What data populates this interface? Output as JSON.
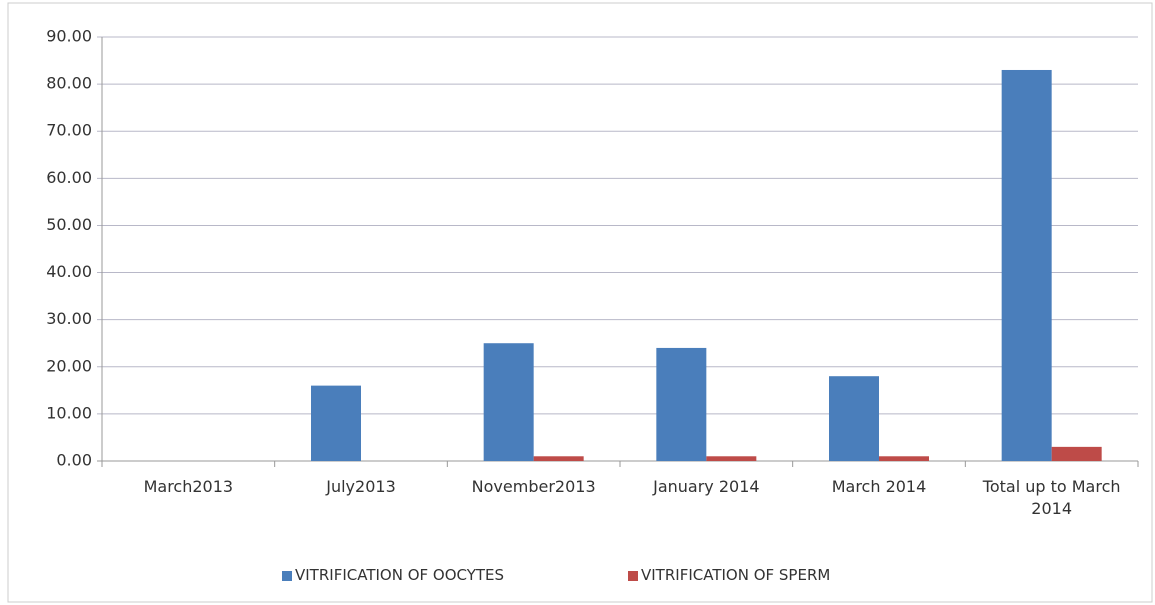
{
  "chart_data": {
    "type": "bar",
    "categories": [
      "March2013",
      "July2013",
      "November2013",
      "January 2014",
      "March 2014",
      "Total up to March 2014"
    ],
    "series": [
      {
        "name": "VITRIFICATION OF OOCYTES",
        "color": "#4a7ebb",
        "values": [
          0,
          16,
          25,
          24,
          18,
          83
        ]
      },
      {
        "name": "VITRIFICATION OF SPERM",
        "color": "#be4b48",
        "values": [
          0,
          0,
          1,
          1,
          1,
          3
        ]
      }
    ],
    "ylim": [
      0,
      90
    ],
    "yticks": [
      {
        "value": 0,
        "label": "0.00"
      },
      {
        "value": 10,
        "label": "10.00"
      },
      {
        "value": 20,
        "label": "20.00"
      },
      {
        "value": 30,
        "label": "30.00"
      },
      {
        "value": 40,
        "label": "40.00"
      },
      {
        "value": 50,
        "label": "50.00"
      },
      {
        "value": 60,
        "label": "60.00"
      },
      {
        "value": 70,
        "label": "70.00"
      },
      {
        "value": 80,
        "label": "80.00"
      },
      {
        "value": 90,
        "label": "90.00"
      }
    ],
    "grid": true,
    "legend": "bottom"
  }
}
